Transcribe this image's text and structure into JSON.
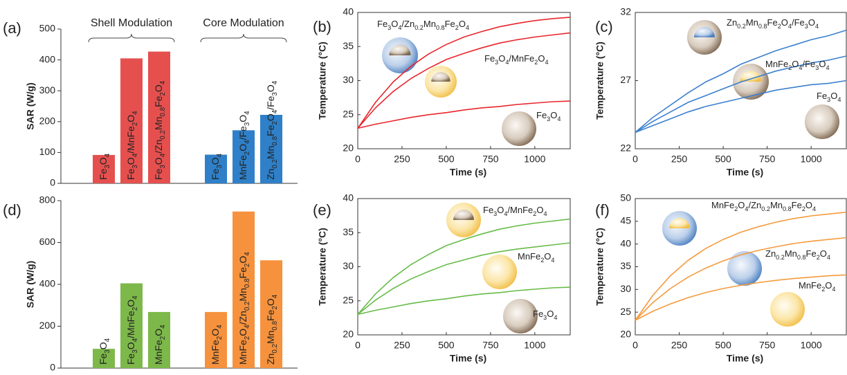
{
  "chart_data": [
    {
      "type": "bar",
      "panel_label": "(a)",
      "y_label": "SAR (W/g)",
      "ylim": [
        0,
        500
      ],
      "yticks": [
        0,
        100,
        200,
        300,
        400,
        500
      ],
      "groups": [
        {
          "name": "Shell Modulation",
          "color": "#e5504f",
          "categories": [
            "Fe3O4",
            "Fe3O4/MnFe2O4",
            "Fe3O4/Zn0.2Mn0.8Fe2O4"
          ],
          "values": [
            92,
            405,
            427
          ]
        },
        {
          "name": "Core Modulation",
          "color": "#2f80c8",
          "categories": [
            "Fe3O4",
            "MnFe2O4/Fe3O4",
            "Zn0.2Mn0.8Fe2O4/Fe3O4"
          ],
          "values": [
            93,
            172,
            222
          ]
        }
      ]
    },
    {
      "type": "line",
      "panel_label": "(b)",
      "x_label": "Time (s)",
      "y_label": "Temperature (°C)",
      "xlim": [
        0,
        1200
      ],
      "xticks": [
        0,
        250,
        500,
        750,
        1000
      ],
      "ylim": [
        20,
        40
      ],
      "yticks": [
        20,
        25,
        30,
        35,
        40
      ],
      "x": [
        0,
        100,
        200,
        300,
        400,
        500,
        600,
        700,
        800,
        900,
        1000,
        1100,
        1200
      ],
      "series": [
        {
          "name": "Fe3O4/Zn0.2Mn0.8Fe2O4",
          "color": "#e8252b",
          "values": [
            23,
            26.8,
            29.8,
            32.1,
            33.9,
            35.3,
            36.4,
            37.2,
            37.9,
            38.4,
            38.8,
            39.1,
            39.3
          ]
        },
        {
          "name": "Fe3O4/MnFe2O4",
          "color": "#e8252b",
          "values": [
            23,
            26.0,
            28.4,
            30.3,
            31.8,
            33.1,
            34.0,
            34.8,
            35.5,
            36.0,
            36.4,
            36.7,
            37.0
          ]
        },
        {
          "name": "Fe3O4",
          "color": "#e8252b",
          "values": [
            23,
            23.6,
            24.1,
            24.6,
            25.0,
            25.3,
            25.7,
            26.0,
            26.2,
            26.5,
            26.7,
            26.9,
            27.0
          ]
        }
      ]
    },
    {
      "type": "line",
      "panel_label": "(c)",
      "x_label": "Time (s)",
      "y_label": "Temperature (°C)",
      "xlim": [
        0,
        1200
      ],
      "xticks": [
        0,
        250,
        500,
        750,
        1000
      ],
      "ylim": [
        22,
        32
      ],
      "yticks": [
        22,
        27,
        32
      ],
      "x": [
        0,
        100,
        200,
        300,
        400,
        500,
        600,
        700,
        800,
        900,
        1000,
        1100,
        1200
      ],
      "series": [
        {
          "name": "Zn0.2Mn0.8Fe2O4/Fe3O4",
          "color": "#3a7fcf",
          "values": [
            23.2,
            24.3,
            25.2,
            26.1,
            26.9,
            27.5,
            28.2,
            28.7,
            29.2,
            29.6,
            30.0,
            30.3,
            30.7
          ]
        },
        {
          "name": "MnFe2O4/Fe3O4",
          "color": "#3a7fcf",
          "values": [
            23.2,
            24.0,
            24.7,
            25.4,
            25.9,
            26.4,
            26.9,
            27.3,
            27.7,
            28.0,
            28.3,
            28.5,
            28.8
          ]
        },
        {
          "name": "Fe3O4",
          "color": "#3a7fcf",
          "values": [
            23.2,
            23.7,
            24.2,
            24.7,
            25.1,
            25.4,
            25.7,
            26.0,
            26.3,
            26.5,
            26.7,
            26.8,
            27.0
          ]
        }
      ]
    },
    {
      "type": "bar",
      "panel_label": "(d)",
      "y_label": "SAR (W/g)",
      "ylim": [
        0,
        800
      ],
      "yticks": [
        0,
        200,
        400,
        600,
        800
      ],
      "groups": [
        {
          "color": "#7db84a",
          "categories": [
            "Fe3O4",
            "Fe3O4/MnFe2O4",
            "MnFe2O4"
          ],
          "values": [
            92,
            405,
            268
          ]
        },
        {
          "color": "#f6923d",
          "categories": [
            "MnFe2O4",
            "MnFe2O4/Zn0.2Mn0.8Fe2O4",
            "Zn0.2Mn0.8Fe2O4"
          ],
          "values": [
            268,
            748,
            515
          ]
        }
      ]
    },
    {
      "type": "line",
      "panel_label": "(e)",
      "x_label": "Time (s)",
      "y_label": "Temperature (°C)",
      "xlim": [
        0,
        1200
      ],
      "xticks": [
        0,
        250,
        500,
        750,
        1000
      ],
      "ylim": [
        20,
        40
      ],
      "yticks": [
        20,
        25,
        30,
        35,
        40
      ],
      "x": [
        0,
        100,
        200,
        300,
        400,
        500,
        600,
        700,
        800,
        900,
        1000,
        1100,
        1200
      ],
      "series": [
        {
          "name": "Fe3O4/MnFe2O4",
          "color": "#66bb48",
          "values": [
            23,
            26.0,
            28.4,
            30.3,
            31.8,
            33.1,
            34.0,
            34.8,
            35.5,
            36.0,
            36.4,
            36.7,
            37.0
          ]
        },
        {
          "name": "MnFe2O4",
          "color": "#66bb48",
          "values": [
            23,
            25.1,
            26.8,
            28.2,
            29.3,
            30.3,
            31.0,
            31.7,
            32.2,
            32.6,
            32.9,
            33.2,
            33.5
          ]
        },
        {
          "name": "Fe3O4",
          "color": "#66bb48",
          "values": [
            23,
            23.6,
            24.1,
            24.6,
            25.0,
            25.3,
            25.7,
            26.0,
            26.2,
            26.5,
            26.7,
            26.9,
            27.0
          ]
        }
      ]
    },
    {
      "type": "line",
      "panel_label": "(f)",
      "x_label": "Time (s)",
      "y_label": "Temperature (°C)",
      "xlim": [
        0,
        1200
      ],
      "xticks": [
        0,
        250,
        500,
        750,
        1000
      ],
      "ylim": [
        20,
        50
      ],
      "yticks": [
        20,
        25,
        30,
        35,
        40,
        45,
        50
      ],
      "x": [
        0,
        100,
        200,
        300,
        400,
        500,
        600,
        700,
        800,
        900,
        1000,
        1100,
        1200
      ],
      "series": [
        {
          "name": "MnFe2O4/Zn0.2Mn0.8Fe2O4",
          "color": "#f59a3d",
          "values": [
            23.2,
            28.7,
            33.0,
            36.4,
            39.0,
            41.0,
            42.6,
            43.8,
            44.8,
            45.6,
            46.2,
            46.6,
            47.0
          ]
        },
        {
          "name": "Zn0.2Mn0.8Fe2O4",
          "color": "#f59a3d",
          "values": [
            23.2,
            27.1,
            30.2,
            32.7,
            34.7,
            36.3,
            37.6,
            38.6,
            39.4,
            40.1,
            40.6,
            41.0,
            41.4
          ]
        },
        {
          "name": "MnFe2O4",
          "color": "#f59a3d",
          "values": [
            23.2,
            25.2,
            26.8,
            28.2,
            29.3,
            30.2,
            30.9,
            31.5,
            32.0,
            32.4,
            32.7,
            33.0,
            33.2
          ]
        }
      ]
    }
  ]
}
